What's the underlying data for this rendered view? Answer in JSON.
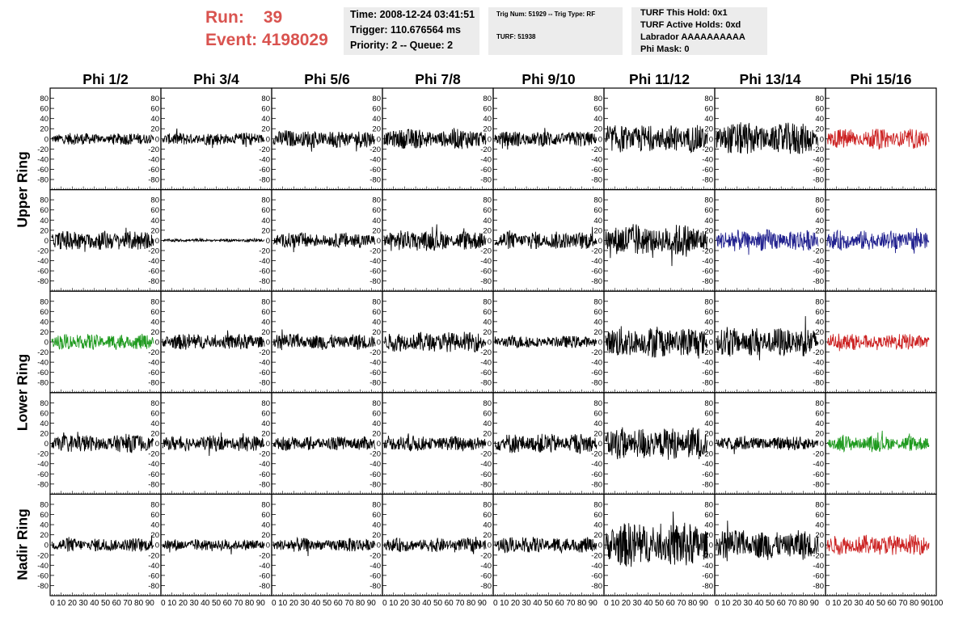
{
  "header": {
    "run_label": "Run:",
    "run_value": "39",
    "event_label": "Event:",
    "event_value": "4198029",
    "time": "Time: 2008-12-24 03:41:51",
    "trigger": "Trigger: 110.676564 ms",
    "priority": "Priority: 2 -- Queue: 2",
    "trig_num": "Trig Num: 51929 -- Trig Type: RF",
    "turf_num": "TURF: 51938",
    "turf_this_hold": "TURF This Hold: 0x1",
    "turf_active_holds": "TURF Active Holds: 0xd",
    "labrador": "Labrador AAAAAAAAAA",
    "phi_mask": "Phi Mask: 0"
  },
  "columns": [
    "Phi 1/2",
    "Phi 3/4",
    "Phi 5/6",
    "Phi 7/8",
    "Phi 9/10",
    "Phi 11/12",
    "Phi 13/14",
    "Phi 15/16"
  ],
  "rows": [
    {
      "label": "Upper Ring",
      "span": [
        0,
        1
      ]
    },
    {
      "label": "Lower Ring",
      "span": [
        2,
        3
      ]
    },
    {
      "label": "Nadir Ring",
      "span": [
        4,
        4
      ]
    }
  ],
  "colors": {
    "red": "#cc2222",
    "blue": "#22228f",
    "green": "#1f9a1f",
    "black": "#000000"
  },
  "chart_data": {
    "type": "line",
    "grid": "8 columns x 5 rows of waveform panels",
    "ylim": [
      -100,
      100
    ],
    "xlim": [
      0,
      100
    ],
    "y_ticks": [
      -80,
      -60,
      -40,
      -20,
      0,
      20,
      40,
      60,
      80
    ],
    "x_tick_labels": [
      "0",
      "10",
      "20",
      "30",
      "40",
      "50",
      "60",
      "70",
      "80",
      "90",
      "100"
    ],
    "panel_amplitudes": [
      [
        12,
        13,
        18,
        20,
        16,
        28,
        33,
        20
      ],
      [
        20,
        3,
        16,
        20,
        18,
        33,
        22,
        20
      ],
      [
        16,
        16,
        16,
        20,
        12,
        32,
        30,
        16
      ],
      [
        18,
        16,
        14,
        16,
        20,
        33,
        14,
        16
      ],
      [
        14,
        12,
        14,
        14,
        16,
        45,
        30,
        20
      ]
    ],
    "panel_colors": [
      [
        "black",
        "black",
        "black",
        "black",
        "black",
        "black",
        "black",
        "red"
      ],
      [
        "black",
        "black",
        "black",
        "black",
        "black",
        "black",
        "blue",
        "blue"
      ],
      [
        "green",
        "black",
        "black",
        "black",
        "black",
        "black",
        "black",
        "red"
      ],
      [
        "black",
        "black",
        "black",
        "black",
        "black",
        "black",
        "black",
        "green"
      ],
      [
        "black",
        "black",
        "black",
        "black",
        "black",
        "black",
        "black",
        "red"
      ]
    ]
  }
}
